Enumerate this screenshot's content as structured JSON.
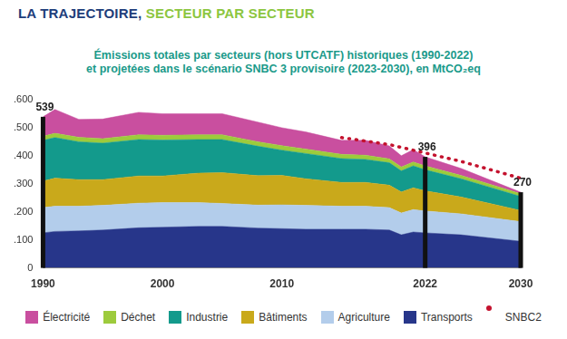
{
  "chart_data": {
    "type": "area",
    "title": "LA TRAJECTOIRE, SECTEUR PAR SECTEUR",
    "subtitle": [
      "Émissions totales par secteurs (hors UTCATF) historiques (1990-2022)",
      "et projetées dans le scénario SNBC 3 provisoire (2023-2030), en MtCO₂eq"
    ],
    "stacked": true,
    "grid": false,
    "legend": "bottom",
    "x": [
      1990,
      1991,
      1993,
      1995,
      1998,
      2000,
      2003,
      2005,
      2008,
      2010,
      2012,
      2015,
      2017,
      2019,
      2020,
      2021,
      2022,
      2025,
      2030
    ],
    "xlim": [
      1990,
      2030
    ],
    "xticks": [
      1990,
      2000,
      2010,
      2022,
      2030
    ],
    "ylim": [
      0,
      600
    ],
    "yticks": [
      0,
      {
        "value": 100,
        "label": ".100"
      },
      {
        "value": 200,
        "label": ".200"
      },
      {
        "value": 300,
        "label": ".300"
      },
      {
        "value": 400,
        "label": ".400"
      },
      {
        "value": 500,
        "label": ".500"
      },
      {
        "value": 600,
        "label": ".600"
      }
    ],
    "series": [
      {
        "name": "Transports",
        "color": "#27368a",
        "values": [
          125,
          130,
          132,
          135,
          143,
          145,
          148,
          148,
          142,
          140,
          138,
          138,
          138,
          135,
          118,
          128,
          125,
          118,
          95
        ]
      },
      {
        "name": "Agriculture",
        "color": "#b3cdeb",
        "values": [
          90,
          90,
          88,
          88,
          88,
          88,
          85,
          82,
          82,
          85,
          85,
          82,
          82,
          80,
          78,
          80,
          78,
          75,
          70
        ]
      },
      {
        "name": "Bâtiments",
        "color": "#c9a91b",
        "values": [
          95,
          100,
          95,
          92,
          97,
          95,
          105,
          110,
          105,
          105,
          95,
          85,
          85,
          80,
          75,
          78,
          72,
          60,
          40
        ]
      },
      {
        "name": "Industrie",
        "color": "#139a8c",
        "values": [
          145,
          145,
          135,
          130,
          130,
          128,
          120,
          118,
          105,
          90,
          90,
          85,
          82,
          80,
          75,
          78,
          75,
          65,
          50
        ]
      },
      {
        "name": "Déchet",
        "color": "#9dcb3c",
        "values": [
          15,
          15,
          16,
          16,
          17,
          17,
          17,
          17,
          16,
          16,
          16,
          15,
          15,
          14,
          14,
          14,
          14,
          12,
          10
        ]
      },
      {
        "name": "Électricité",
        "color": "#c94f9f",
        "values": [
          69,
          85,
          64,
          70,
          80,
          77,
          75,
          75,
          70,
          64,
          61,
          50,
          53,
          46,
          40,
          44,
          32,
          25,
          5
        ]
      },
      {
        "name": "SNBC2",
        "color": "#c4122e",
        "type": "line",
        "line_style": "dotted",
        "values": [
          null,
          null,
          null,
          null,
          null,
          null,
          null,
          null,
          null,
          null,
          null,
          465,
          null,
          440,
          null,
          null,
          410,
          380,
          320
        ]
      }
    ],
    "annotations": [
      {
        "x": 1990,
        "value": 539
      },
      {
        "x": 2022,
        "value": 396
      },
      {
        "x": 2030,
        "value": 270
      }
    ]
  }
}
